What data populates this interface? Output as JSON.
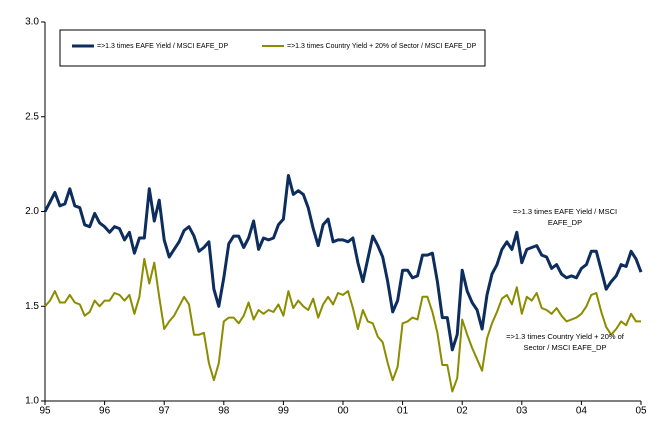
{
  "chart_data": {
    "type": "line",
    "categories": [
      "95",
      null,
      null,
      null,
      null,
      null,
      null,
      null,
      null,
      null,
      null,
      null,
      "96",
      null,
      null,
      null,
      null,
      null,
      null,
      null,
      null,
      null,
      null,
      null,
      "97",
      null,
      null,
      null,
      null,
      null,
      null,
      null,
      null,
      null,
      null,
      null,
      "98",
      null,
      null,
      null,
      null,
      null,
      null,
      null,
      null,
      null,
      null,
      null,
      "99",
      null,
      null,
      null,
      null,
      null,
      null,
      null,
      null,
      null,
      null,
      null,
      "00",
      null,
      null,
      null,
      null,
      null,
      null,
      null,
      null,
      null,
      null,
      null,
      "01",
      null,
      null,
      null,
      null,
      null,
      null,
      null,
      null,
      null,
      null,
      null,
      "02",
      null,
      null,
      null,
      null,
      null,
      null,
      null,
      null,
      null,
      null,
      null,
      "03",
      null,
      null,
      null,
      null,
      null,
      null,
      null,
      null,
      null,
      null,
      null,
      "04",
      null,
      null,
      null,
      null,
      null,
      null,
      null,
      null,
      null,
      null,
      null,
      "05"
    ],
    "series": [
      {
        "name": "=>1.3 times EAFE Yield / MSCI EAFE_DP",
        "color": "#0d2d5e",
        "values": [
          2.0,
          2.05,
          2.1,
          2.03,
          2.04,
          2.12,
          2.03,
          2.02,
          1.93,
          1.92,
          1.99,
          1.94,
          1.92,
          1.89,
          1.92,
          1.91,
          1.85,
          1.89,
          1.78,
          1.86,
          1.86,
          2.12,
          1.95,
          2.06,
          1.85,
          1.76,
          1.8,
          1.84,
          1.9,
          1.92,
          1.87,
          1.79,
          1.81,
          1.84,
          1.59,
          1.5,
          1.65,
          1.83,
          1.87,
          1.87,
          1.81,
          1.86,
          1.95,
          1.8,
          1.86,
          1.85,
          1.86,
          1.93,
          1.96,
          2.19,
          2.09,
          2.11,
          2.09,
          2.02,
          1.91,
          1.82,
          1.93,
          1.96,
          1.84,
          1.85,
          1.85,
          1.84,
          1.86,
          1.73,
          1.63,
          1.75,
          1.87,
          1.82,
          1.76,
          1.63,
          1.47,
          1.53,
          1.69,
          1.69,
          1.65,
          1.66,
          1.77,
          1.77,
          1.78,
          1.63,
          1.44,
          1.44,
          1.27,
          1.35,
          1.69,
          1.58,
          1.52,
          1.48,
          1.38,
          1.56,
          1.67,
          1.72,
          1.8,
          1.84,
          1.8,
          1.89,
          1.73,
          1.8,
          1.81,
          1.82,
          1.77,
          1.76,
          1.7,
          1.72,
          1.67,
          1.65,
          1.66,
          1.65,
          1.7,
          1.72,
          1.79,
          1.79,
          1.69,
          1.59,
          1.63,
          1.66,
          1.72,
          1.71,
          1.79,
          1.75,
          1.68
        ]
      },
      {
        "name": "=>1.3 times Country Yield + 20% of Sector  / MSCI EAFE_DP",
        "color": "#8c8c00",
        "values": [
          1.5,
          1.53,
          1.58,
          1.52,
          1.52,
          1.56,
          1.52,
          1.51,
          1.45,
          1.47,
          1.53,
          1.5,
          1.53,
          1.53,
          1.57,
          1.56,
          1.53,
          1.56,
          1.46,
          1.55,
          1.75,
          1.62,
          1.73,
          1.55,
          1.38,
          1.42,
          1.45,
          1.5,
          1.55,
          1.51,
          1.35,
          1.35,
          1.36,
          1.2,
          1.11,
          1.2,
          1.42,
          1.44,
          1.44,
          1.41,
          1.45,
          1.52,
          1.43,
          1.48,
          1.46,
          1.48,
          1.47,
          1.51,
          1.45,
          1.58,
          1.49,
          1.53,
          1.5,
          1.48,
          1.54,
          1.44,
          1.51,
          1.55,
          1.51,
          1.57,
          1.56,
          1.58,
          1.49,
          1.38,
          1.48,
          1.42,
          1.41,
          1.34,
          1.31,
          1.2,
          1.11,
          1.18,
          1.41,
          1.42,
          1.44,
          1.43,
          1.55,
          1.55,
          1.47,
          1.36,
          1.19,
          1.19,
          1.05,
          1.12,
          1.43,
          1.35,
          1.28,
          1.22,
          1.16,
          1.33,
          1.41,
          1.47,
          1.54,
          1.56,
          1.51,
          1.6,
          1.46,
          1.55,
          1.53,
          1.57,
          1.49,
          1.48,
          1.46,
          1.49,
          1.45,
          1.42,
          1.43,
          1.44,
          1.46,
          1.5,
          1.56,
          1.57,
          1.47,
          1.39,
          1.35,
          1.38,
          1.42,
          1.4,
          1.46,
          1.42,
          1.42
        ]
      }
    ],
    "ylim": [
      1,
      3
    ],
    "yticks": [
      {
        "value": 1,
        "label": "1.0"
      },
      {
        "value": 1.5,
        "label": "1.5"
      },
      {
        "value": 2,
        "label": "2.0"
      },
      {
        "value": 2.5,
        "label": "2.5"
      },
      {
        "value": 3,
        "label": "3.0"
      }
    ],
    "legend": "upper left",
    "grid": false,
    "annotations": [
      {
        "lines": [
          "=>1.3 times EAFE Yield / MSCI",
          "EAFE_DP"
        ]
      },
      {
        "lines": [
          "=>1.3 times Country Yield + 20% of",
          "Sector  / MSCI EAFE_DP"
        ]
      }
    ]
  }
}
